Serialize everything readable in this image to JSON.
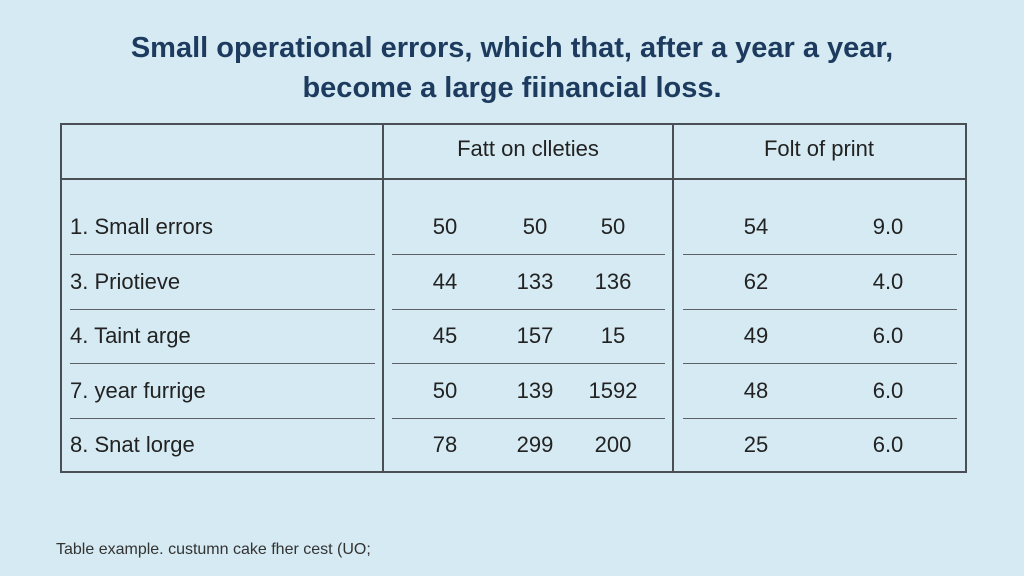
{
  "title_lines": [
    "Small operational errors, which that, after a year a year,",
    "become a large fiinancial loss."
  ],
  "table": {
    "group_headers": [
      "Fatt on clleties",
      "Folt of print"
    ],
    "rows": [
      [
        "1. Small errors",
        "50",
        "50",
        "50",
        "54",
        "9.0"
      ],
      [
        "3. Priotieve",
        "44",
        "133",
        "136",
        "62",
        "4.0"
      ],
      [
        "4. Taint arge",
        "45",
        "157",
        "15",
        "49",
        "6.0"
      ],
      [
        "7. year furrige",
        "50",
        "139",
        "1592",
        "48",
        "6.0"
      ],
      [
        "8. Snat lorge",
        "78",
        "299",
        "200",
        "25",
        "6.0"
      ]
    ]
  },
  "footer": "Table example. custumn cake fher cest (UO;"
}
